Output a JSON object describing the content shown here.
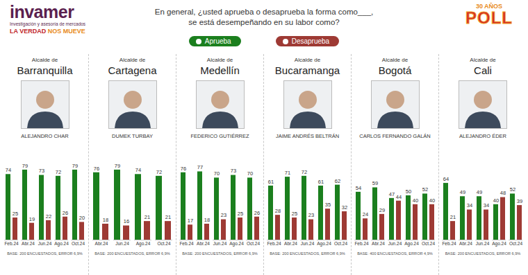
{
  "header": {
    "logo": "invamer",
    "logo_subtitle": "Investigación y asesoría de mercados",
    "tagline": [
      "LA VERDAD",
      "NOS MUEVE"
    ],
    "title": [
      "En general, ¿usted aprueba o desaprueba la forma como___,",
      "se está desempeñando en su labor como?"
    ],
    "badge": [
      "30 AÑOS",
      "POLL"
    ]
  },
  "chart_data": [
    {
      "type": "bar",
      "title": "Barranquilla",
      "subtitle": "ALEJANDRO CHAR",
      "annotations": [
        "Alcalde de",
        "BASE: 200 ENCUESTADOS, ERROR 6,9%"
      ],
      "categories": [
        "Feb.24",
        "Abr.24",
        "Jun.24",
        "Ago.24",
        "Oct.24"
      ],
      "series": [
        {
          "name": "Aprueba",
          "color": "#1b7f1e",
          "values": [
            74,
            79,
            73,
            72,
            79
          ]
        },
        {
          "name": "Desaprueba",
          "color": "#9e3a34",
          "values": [
            25,
            19,
            22,
            26,
            20
          ]
        }
      ],
      "ylim": [
        0,
        100
      ],
      "data_labels": true,
      "tick_labels": "x",
      "legend": "top"
    },
    {
      "type": "bar",
      "title": "Cartagena",
      "subtitle": "DUMEK TURBAY",
      "annotations": [
        "Alcalde de",
        "BASE: 200 ENCUESTADOS, ERROR 6,9%"
      ],
      "categories": [
        "Abr.24",
        "Jun.24",
        "Ago.24",
        "Oct.24"
      ],
      "series": [
        {
          "name": "Aprueba",
          "color": "#1b7f1e",
          "values": [
            76,
            79,
            74,
            72
          ]
        },
        {
          "name": "Desaprueba",
          "color": "#9e3a34",
          "values": [
            18,
            16,
            21,
            21
          ]
        }
      ],
      "ylim": [
        0,
        100
      ],
      "data_labels": true,
      "tick_labels": "x"
    },
    {
      "type": "bar",
      "title": "Medellín",
      "subtitle": "FEDERICO GUTIÉRREZ",
      "annotations": [
        "Alcalde de",
        "BASE: 200 ENCUESTADOS, ERROR 6,9%"
      ],
      "categories": [
        "Feb.24",
        "Abr.24",
        "Jun.24",
        "Ago.24",
        "Oct.24"
      ],
      "series": [
        {
          "name": "Aprueba",
          "color": "#1b7f1e",
          "values": [
            76,
            77,
            70,
            73,
            70
          ]
        },
        {
          "name": "Desaprueba",
          "color": "#9e3a34",
          "values": [
            17,
            18,
            23,
            25,
            26
          ]
        }
      ],
      "ylim": [
        0,
        100
      ],
      "data_labels": true,
      "tick_labels": "x"
    },
    {
      "type": "bar",
      "title": "Bucaramanga",
      "subtitle": "JAIME ANDRÉS BELTRÁN",
      "annotations": [
        "Alcalde de",
        "BASE: 200 ENCUESTADOS, ERROR 6,9%"
      ],
      "categories": [
        "Feb.24",
        "Abr.24",
        "Jun.24",
        "Ago.24",
        "Oct.24"
      ],
      "series": [
        {
          "name": "Aprueba",
          "color": "#1b7f1e",
          "values": [
            61,
            71,
            72,
            61,
            62
          ]
        },
        {
          "name": "Desaprueba",
          "color": "#9e3a34",
          "values": [
            28,
            25,
            23,
            35,
            32
          ]
        }
      ],
      "ylim": [
        0,
        100
      ],
      "data_labels": true,
      "tick_labels": "x"
    },
    {
      "type": "bar",
      "title": "Bogotá",
      "subtitle": "CARLOS FERNANDO GALÁN",
      "annotations": [
        "Alcalde de",
        "BASE: 400 ENCUESTADOS, ERROR 4,9%"
      ],
      "categories": [
        "Feb.24",
        "Abr.24",
        "Jun.24",
        "Ago.24",
        "Oct.24"
      ],
      "series": [
        {
          "name": "Aprueba",
          "color": "#1b7f1e",
          "values": [
            54,
            59,
            47,
            50,
            52
          ]
        },
        {
          "name": "Desaprueba",
          "color": "#9e3a34",
          "values": [
            24,
            29,
            44,
            40,
            40
          ]
        }
      ],
      "ylim": [
        0,
        100
      ],
      "data_labels": true,
      "tick_labels": "x"
    },
    {
      "type": "bar",
      "title": "Cali",
      "subtitle": "ALEJANDRO ÉDER",
      "annotations": [
        "Alcalde de",
        "BASE: 200 ENCUESTADOS, ERROR 6,9%"
      ],
      "categories": [
        "Feb.24",
        "Abr.24",
        "Jun.24",
        "Ago.24",
        "Oct.24"
      ],
      "series": [
        {
          "name": "Aprueba",
          "color": "#1b7f1e",
          "values": [
            64,
            49,
            49,
            40,
            52
          ]
        },
        {
          "name": "Desaprueba",
          "color": "#9e3a34",
          "values": [
            21,
            34,
            34,
            48,
            39
          ]
        }
      ],
      "ylim": [
        0,
        100
      ],
      "data_labels": true,
      "tick_labels": "x"
    }
  ]
}
